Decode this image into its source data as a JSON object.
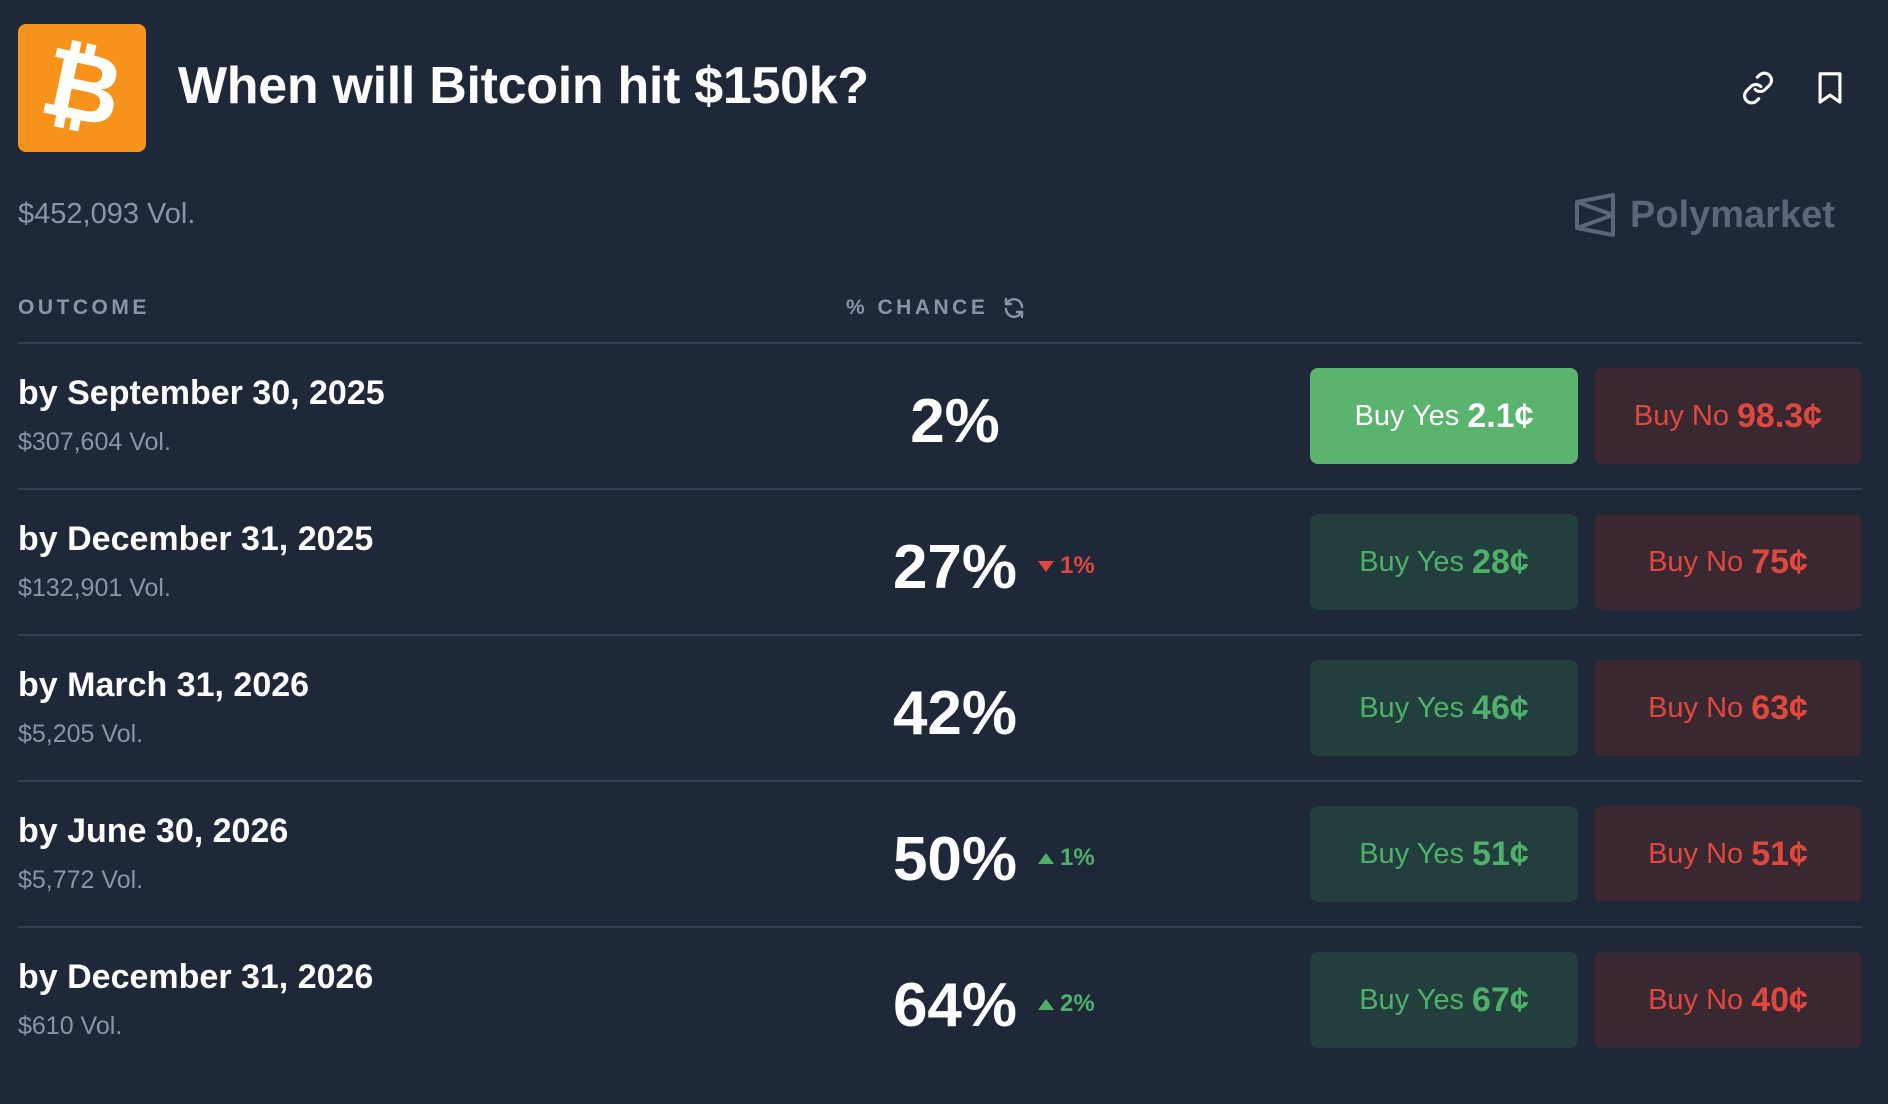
{
  "header": {
    "title": "When will Bitcoin hit $150k?",
    "total_volume": "$452,093 Vol.",
    "brand": "Polymarket",
    "logo_symbol": "₿",
    "icons": [
      "link-icon",
      "bookmark-icon"
    ]
  },
  "columns": {
    "outcome": "OUTCOME",
    "chance": "% CHANCE"
  },
  "rows": [
    {
      "label": "by September 30, 2025",
      "volume": "$307,604 Vol.",
      "chance": "2%",
      "change": "",
      "direction": "",
      "yes_label": "Buy Yes",
      "yes_price": "2.1¢",
      "no_label": "Buy No",
      "no_price": "98.3¢"
    },
    {
      "label": "by December 31, 2025",
      "volume": "$132,901 Vol.",
      "chance": "27%",
      "change": "1%",
      "direction": "down",
      "yes_label": "Buy Yes",
      "yes_price": "28¢",
      "no_label": "Buy No",
      "no_price": "75¢"
    },
    {
      "label": "by March 31, 2026",
      "volume": "$5,205 Vol.",
      "chance": "42%",
      "change": "",
      "direction": "",
      "yes_label": "Buy Yes",
      "yes_price": "46¢",
      "no_label": "Buy No",
      "no_price": "63¢"
    },
    {
      "label": "by June 30, 2026",
      "volume": "$5,772 Vol.",
      "chance": "50%",
      "change": "1%",
      "direction": "up",
      "yes_label": "Buy Yes",
      "yes_price": "51¢",
      "no_label": "Buy No",
      "no_price": "51¢"
    },
    {
      "label": "by December 31, 2026",
      "volume": "$610 Vol.",
      "chance": "64%",
      "change": "2%",
      "direction": "up",
      "yes_label": "Buy Yes",
      "yes_price": "67¢",
      "no_label": "Buy No",
      "no_price": "40¢"
    }
  ],
  "colors": {
    "background": "#1e2838",
    "bitcoin_orange": "#f7931a",
    "yes_green": "#4fb06a",
    "no_red": "#e0483f"
  }
}
